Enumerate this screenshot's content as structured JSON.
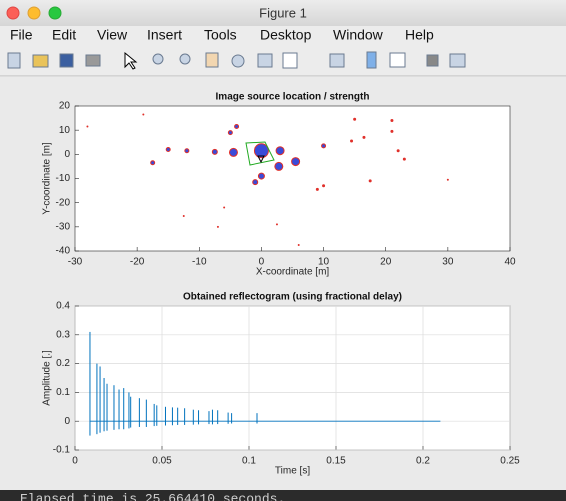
{
  "window": {
    "title": "Figure 1",
    "menu": [
      "File",
      "Edit",
      "View",
      "Insert",
      "Tools",
      "Desktop",
      "Window",
      "Help"
    ],
    "console": "Elapsed time is 25.664410 seconds."
  },
  "chart_data": [
    {
      "type": "scatter",
      "title": "Image source location / strength",
      "xlabel": "X-coordinate [m]",
      "ylabel": "Y-coordinate [m]",
      "x": [
        0,
        -4.5,
        3,
        2.8,
        5.5,
        0,
        -1,
        -7.5,
        -12,
        -15,
        -17.5,
        -5,
        -4,
        10,
        10,
        9,
        14.5,
        16.5,
        15,
        21,
        21,
        22,
        23,
        17.5,
        30,
        -28,
        -19,
        -12.5,
        -6,
        -7,
        2.5,
        6
      ],
      "values": [
        1.5,
        0.8,
        1.5,
        -5,
        -3,
        -9,
        -11.5,
        1,
        1.5,
        2,
        -3.5,
        9,
        11.5,
        3.5,
        -13,
        -14.5,
        5.5,
        7,
        14.5,
        14,
        9.5,
        1.5,
        -2,
        -11,
        -10.5,
        11.5,
        16.5,
        -25.5,
        -22,
        -30,
        -29,
        -37.5
      ],
      "sizes": [
        14,
        8,
        8,
        8,
        8,
        6,
        5,
        5,
        4,
        4,
        4,
        4,
        4,
        4,
        3,
        3,
        3,
        3,
        3,
        3,
        3,
        3,
        3,
        3,
        2,
        2,
        2,
        2,
        2,
        2,
        2,
        2
      ],
      "color": "#3a4bd8",
      "edgecolor": "#e0302a",
      "xlim": [
        -30,
        40
      ],
      "xticks": [
        -30,
        -20,
        -10,
        0,
        10,
        20,
        30,
        40
      ],
      "ylim": [
        -40,
        20
      ],
      "yticks": [
        -40,
        -30,
        -20,
        -10,
        0,
        10,
        20
      ],
      "grid": false
    },
    {
      "type": "stem",
      "title": "Obtained reflectogram (using fractional delay)",
      "xlabel": "Time [s]",
      "ylabel": "Amplitude [.]",
      "x": [
        0.0086,
        0.0126,
        0.0144,
        0.0167,
        0.0184,
        0.0224,
        0.0253,
        0.028,
        0.031,
        0.032,
        0.037,
        0.041,
        0.0455,
        0.047,
        0.052,
        0.056,
        0.059,
        0.063,
        0.068,
        0.071,
        0.077,
        0.079,
        0.082,
        0.088,
        0.09,
        0.1046,
        0.21
      ],
      "values": [
        0.31,
        0.2,
        0.19,
        0.15,
        0.13,
        0.125,
        0.11,
        0.115,
        0.1,
        0.085,
        0.08,
        0.075,
        0.06,
        0.055,
        0.05,
        0.048,
        0.047,
        0.045,
        0.04,
        0.038,
        0.035,
        0.04,
        0.038,
        0.03,
        0.028,
        0.028,
        0
      ],
      "lows": [
        -0.05,
        -0.045,
        -0.04,
        -0.035,
        -0.033,
        -0.03,
        -0.028,
        -0.028,
        -0.025,
        -0.022,
        -0.02,
        -0.02,
        -0.017,
        -0.016,
        -0.015,
        -0.014,
        -0.013,
        -0.013,
        -0.012,
        -0.011,
        -0.01,
        -0.011,
        -0.01,
        -0.009,
        -0.008,
        -0.008,
        0
      ],
      "color": "#0072bd",
      "xlim": [
        0,
        0.25
      ],
      "xticks": [
        0,
        0.05,
        0.1,
        0.15,
        0.2,
        0.25
      ],
      "ylim": [
        -0.1,
        0.4
      ],
      "yticks": [
        -0.1,
        0,
        0.1,
        0.2,
        0.3,
        0.4
      ],
      "grid": true
    }
  ]
}
